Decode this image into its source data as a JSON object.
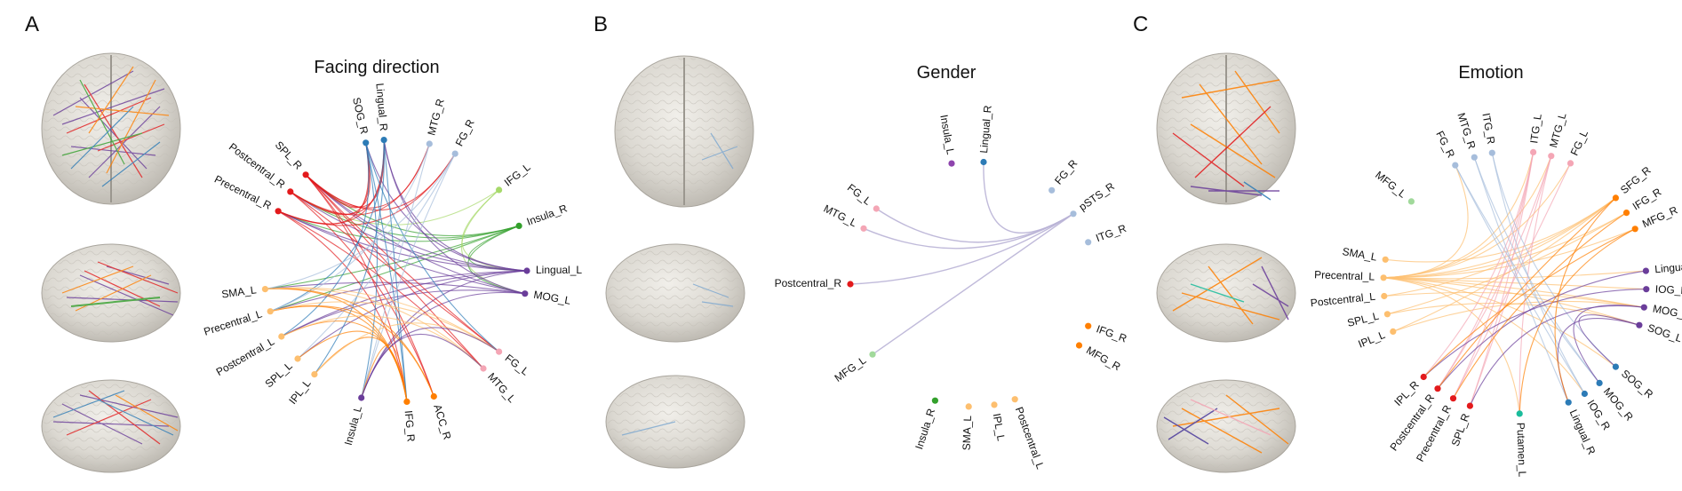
{
  "panels": [
    {
      "id": "A",
      "letter": "A",
      "title": "Facing direction",
      "nodes": [
        {
          "label": "SOG_R",
          "angle": -103,
          "color": "#2c7bb6"
        },
        {
          "label": "Lingual_R",
          "angle": -95,
          "color": "#2c7bb6"
        },
        {
          "label": "MTG_R",
          "angle": -75,
          "color": "#a6bddb"
        },
        {
          "label": "FG_R",
          "angle": -63,
          "color": "#a6bddb"
        },
        {
          "label": "IFG_L",
          "angle": -38,
          "color": "#a6d96a"
        },
        {
          "label": "Insula_R",
          "angle": -20,
          "color": "#33a02c"
        },
        {
          "label": "Lingual_L",
          "angle": 0,
          "color": "#6a3d9a"
        },
        {
          "label": "MOG_L",
          "angle": 10,
          "color": "#6a3d9a"
        },
        {
          "label": "FG_L",
          "angle": 38,
          "color": "#f4a6b5"
        },
        {
          "label": "MTG_L",
          "angle": 48,
          "color": "#f4a6b5"
        },
        {
          "label": "ACC_R",
          "angle": 73,
          "color": "#ff7f00"
        },
        {
          "label": "IFG_R",
          "angle": 85,
          "color": "#ff7f00"
        },
        {
          "label": "Insula_L",
          "angle": 105,
          "color": "#6a3d9a"
        },
        {
          "label": "IPL_L",
          "angle": 128,
          "color": "#fdbf6f"
        },
        {
          "label": "SPL_L",
          "angle": 138,
          "color": "#fdbf6f"
        },
        {
          "label": "Postcentral_L",
          "angle": 150,
          "color": "#fdbf6f"
        },
        {
          "label": "Precentral_L",
          "angle": 162,
          "color": "#fdbf6f"
        },
        {
          "label": "SMA_L",
          "angle": 172,
          "color": "#fdbf6f"
        },
        {
          "label": "Precentral_R",
          "angle": 207,
          "color": "#e31a1c"
        },
        {
          "label": "Postcentral_R",
          "angle": 217,
          "color": "#e31a1c"
        },
        {
          "label": "SPL_R",
          "angle": 227,
          "color": "#e31a1c"
        }
      ]
    },
    {
      "id": "B",
      "letter": "B",
      "title": "Gender",
      "nodes": [
        {
          "label": "Insula_L",
          "angle": -100,
          "color": "#8e44ad"
        },
        {
          "label": "Lingual_R",
          "angle": -85,
          "color": "#2c7bb6"
        },
        {
          "label": "FG_R",
          "angle": -50,
          "color": "#a6bddb"
        },
        {
          "label": "pSTS_R",
          "angle": -35,
          "color": "#a6bddb"
        },
        {
          "label": "ITG_R",
          "angle": -20,
          "color": "#a6bddb"
        },
        {
          "label": "IFG_R",
          "angle": 20,
          "color": "#ff7f00"
        },
        {
          "label": "MFG_R",
          "angle": 30,
          "color": "#ff7f00"
        },
        {
          "label": "Postcentral_L",
          "angle": 70,
          "color": "#fdbf6f"
        },
        {
          "label": "IPL_L",
          "angle": 80,
          "color": "#fdbf6f"
        },
        {
          "label": "SMA_L",
          "angle": 92,
          "color": "#fdbf6f"
        },
        {
          "label": "Insula_R",
          "angle": 108,
          "color": "#33a02c"
        },
        {
          "label": "MFG_L",
          "angle": 145,
          "color": "#a1d99b"
        },
        {
          "label": "Postcentral_R",
          "angle": 180,
          "color": "#e31a1c"
        },
        {
          "label": "MTG_L",
          "angle": 207,
          "color": "#f4a6b5"
        },
        {
          "label": "FG_L",
          "angle": 218,
          "color": "#f4a6b5"
        }
      ]
    },
    {
      "id": "C",
      "letter": "C",
      "title": "Emotion",
      "nodes": [
        {
          "label": "ITG_R",
          "angle": -100,
          "color": "#a6bddb"
        },
        {
          "label": "MTG_R",
          "angle": -108,
          "color": "#a6bddb"
        },
        {
          "label": "FG_R",
          "angle": -117,
          "color": "#a6bddb"
        },
        {
          "label": "ITG_L",
          "angle": -82,
          "color": "#f4a6b5"
        },
        {
          "label": "MTG_L",
          "angle": -74,
          "color": "#f4a6b5"
        },
        {
          "label": "FG_L",
          "angle": -65,
          "color": "#f4a6b5"
        },
        {
          "label": "SFG_R",
          "angle": -40,
          "color": "#ff7f00"
        },
        {
          "label": "IFG_R",
          "angle": -32,
          "color": "#ff7f00"
        },
        {
          "label": "MFG_R",
          "angle": -24,
          "color": "#ff7f00"
        },
        {
          "label": "Lingual_L",
          "angle": -5,
          "color": "#6a3d9a"
        },
        {
          "label": "IOG_L",
          "angle": 3,
          "color": "#6a3d9a"
        },
        {
          "label": "MOG_L",
          "angle": 11,
          "color": "#6a3d9a"
        },
        {
          "label": "SOG_L",
          "angle": 19,
          "color": "#6a3d9a"
        },
        {
          "label": "SOG_R",
          "angle": 40,
          "color": "#2c7bb6"
        },
        {
          "label": "MOG_R",
          "angle": 50,
          "color": "#2c7bb6"
        },
        {
          "label": "IOG_R",
          "angle": 58,
          "color": "#2c7bb6"
        },
        {
          "label": "Lingual_R",
          "angle": 66,
          "color": "#2c7bb6"
        },
        {
          "label": "Putamen_L",
          "angle": 88,
          "color": "#1abc9c"
        },
        {
          "label": "SPL_R",
          "angle": 110,
          "color": "#e31a1c"
        },
        {
          "label": "Precentral_R",
          "angle": 118,
          "color": "#e31a1c"
        },
        {
          "label": "Postcentral_R",
          "angle": 126,
          "color": "#e31a1c"
        },
        {
          "label": "IPL_R",
          "angle": 134,
          "color": "#e31a1c"
        },
        {
          "label": "IPL_L",
          "angle": 158,
          "color": "#fdbf6f"
        },
        {
          "label": "SPL_L",
          "angle": 166,
          "color": "#fdbf6f"
        },
        {
          "label": "Postcentral_L",
          "angle": 174,
          "color": "#fdbf6f"
        },
        {
          "label": "Precentral_L",
          "angle": 182,
          "color": "#fdbf6f"
        },
        {
          "label": "SMA_L",
          "angle": 190,
          "color": "#fdbf6f"
        },
        {
          "label": "MFG_L",
          "angle": 218,
          "color": "#a1d99b"
        }
      ]
    }
  ],
  "edges": {
    "A": [
      [
        "Insula_R",
        "Lingual_L"
      ],
      [
        "Insula_R",
        "MOG_L"
      ],
      [
        "Insula_R",
        "SPL_R"
      ],
      [
        "Insula_R",
        "Precentral_R"
      ],
      [
        "Insula_R",
        "Postcentral_R"
      ],
      [
        "Insula_R",
        "SMA_L"
      ],
      [
        "Insula_R",
        "Precentral_L"
      ],
      [
        "IFG_L",
        "Lingual_L"
      ],
      [
        "IFG_L",
        "Postcentral_R"
      ],
      [
        "IFG_L",
        "MOG_L"
      ],
      [
        "Lingual_L",
        "SPL_R"
      ],
      [
        "Lingual_L",
        "Precentral_R"
      ],
      [
        "Lingual_L",
        "Postcentral_R"
      ],
      [
        "Lingual_L",
        "Precentral_L"
      ],
      [
        "Lingual_L",
        "Postcentral_L"
      ],
      [
        "Lingual_L",
        "SPL_L"
      ],
      [
        "Lingual_L",
        "Insula_L"
      ],
      [
        "Lingual_L",
        "SOG_R"
      ],
      [
        "Lingual_L",
        "Lingual_R"
      ],
      [
        "MOG_L",
        "SPL_R"
      ],
      [
        "MOG_L",
        "Precentral_R"
      ],
      [
        "MOG_L",
        "Postcentral_L"
      ],
      [
        "MOG_L",
        "Insula_L"
      ],
      [
        "MOG_L",
        "SMA_L"
      ],
      [
        "MOG_L",
        "Lingual_R"
      ],
      [
        "SPL_R",
        "SOG_R"
      ],
      [
        "SPL_R",
        "Lingual_R"
      ],
      [
        "SPL_R",
        "MTG_R"
      ],
      [
        "SPL_R",
        "FG_R"
      ],
      [
        "SPL_R",
        "IFG_R"
      ],
      [
        "SPL_R",
        "ACC_R"
      ],
      [
        "SPL_R",
        "FG_L"
      ],
      [
        "SPL_R",
        "MTG_L"
      ],
      [
        "Precentral_R",
        "SOG_R"
      ],
      [
        "Precentral_R",
        "Lingual_R"
      ],
      [
        "Precentral_R",
        "IFG_R"
      ],
      [
        "Precentral_R",
        "FG_R"
      ],
      [
        "Precentral_R",
        "MTG_L"
      ],
      [
        "Postcentral_R",
        "SOG_R"
      ],
      [
        "Postcentral_R",
        "Lingual_R"
      ],
      [
        "Postcentral_R",
        "ACC_R"
      ],
      [
        "Postcentral_R",
        "FG_L"
      ],
      [
        "Postcentral_R",
        "MTG_R"
      ],
      [
        "SOG_R",
        "IFG_R"
      ],
      [
        "SOG_R",
        "Insula_L"
      ],
      [
        "SOG_R",
        "Postcentral_L"
      ],
      [
        "SOG_R",
        "FG_L"
      ],
      [
        "Lingual_R",
        "IFG_R"
      ],
      [
        "Lingual_R",
        "Precentral_L"
      ],
      [
        "Lingual_R",
        "IPL_L"
      ],
      [
        "MTG_R",
        "Insula_L"
      ],
      [
        "MTG_R",
        "Precentral_L"
      ],
      [
        "FG_R",
        "Insula_L"
      ],
      [
        "FG_R",
        "SPL_L"
      ],
      [
        "FG_R",
        "SMA_L"
      ],
      [
        "IFG_R",
        "SMA_L"
      ],
      [
        "IFG_R",
        "Precentral_L"
      ],
      [
        "IFG_R",
        "Postcentral_L"
      ],
      [
        "IFG_R",
        "SPL_L"
      ],
      [
        "IFG_R",
        "IPL_L"
      ],
      [
        "IFG_R",
        "Insula_L"
      ],
      [
        "ACC_R",
        "Precentral_L"
      ],
      [
        "ACC_R",
        "SMA_L"
      ],
      [
        "SMA_L",
        "FG_L"
      ],
      [
        "SMA_L",
        "MTG_L"
      ],
      [
        "Precentral_L",
        "FG_L"
      ],
      [
        "Postcentral_L",
        "MTG_L"
      ],
      [
        "IPL_L",
        "FG_L"
      ],
      [
        "Insula_L",
        "FG_L"
      ],
      [
        "Insula_L",
        "MTG_L"
      ]
    ],
    "B": [
      [
        "pSTS_R",
        "Lingual_R"
      ],
      [
        "pSTS_R",
        "Postcentral_R"
      ],
      [
        "pSTS_R",
        "MFG_L"
      ],
      [
        "pSTS_R",
        "MTG_L"
      ],
      [
        "pSTS_R",
        "FG_L"
      ]
    ],
    "C": [
      [
        "Precentral_L",
        "SFG_R"
      ],
      [
        "Precentral_L",
        "IFG_R"
      ],
      [
        "Precentral_L",
        "MFG_R"
      ],
      [
        "Precentral_L",
        "Lingual_L"
      ],
      [
        "Precentral_L",
        "IOG_L"
      ],
      [
        "Precentral_L",
        "MOG_L"
      ],
      [
        "Precentral_L",
        "SOG_L"
      ],
      [
        "Precentral_L",
        "ITG_L"
      ],
      [
        "Precentral_L",
        "MTG_L"
      ],
      [
        "Precentral_L",
        "FG_L"
      ],
      [
        "Precentral_L",
        "SOG_R"
      ],
      [
        "Precentral_L",
        "IOG_R"
      ],
      [
        "Precentral_L",
        "Putamen_L"
      ],
      [
        "Precentral_L",
        "FG_R"
      ],
      [
        "Postcentral_L",
        "SFG_R"
      ],
      [
        "Postcentral_L",
        "MOG_L"
      ],
      [
        "SPL_L",
        "IFG_R"
      ],
      [
        "SPL_L",
        "SOG_L"
      ],
      [
        "IPL_L",
        "MOG_L"
      ],
      [
        "IPL_L",
        "SFG_R"
      ],
      [
        "SMA_L",
        "SFG_R"
      ],
      [
        "ITG_L",
        "IPL_R"
      ],
      [
        "ITG_L",
        "Postcentral_R"
      ],
      [
        "ITG_L",
        "Precentral_R"
      ],
      [
        "ITG_L",
        "SPL_R"
      ],
      [
        "MTG_L",
        "SPL_R"
      ],
      [
        "MTG_L",
        "Postcentral_R"
      ],
      [
        "FG_L",
        "Precentral_R"
      ],
      [
        "MTG_L",
        "Putamen_L"
      ],
      [
        "FG_R",
        "MOG_R"
      ],
      [
        "FG_R",
        "IOG_R"
      ],
      [
        "MTG_R",
        "Lingual_R"
      ],
      [
        "MTG_R",
        "MOG_R"
      ],
      [
        "ITG_R",
        "SOG_R"
      ],
      [
        "ITG_R",
        "IOG_R"
      ],
      [
        "SOG_L",
        "SOG_R"
      ],
      [
        "MOG_L",
        "MOG_R"
      ],
      [
        "SOG_L",
        "Lingual_R"
      ],
      [
        "Lingual_L",
        "Postcentral_R"
      ],
      [
        "IOG_L",
        "IPL_R"
      ],
      [
        "MOG_L",
        "SPL_R"
      ],
      [
        "SFG_R",
        "Postcentral_R"
      ],
      [
        "IFG_R",
        "Precentral_R"
      ],
      [
        "MFG_R",
        "IPL_R"
      ],
      [
        "SFG_R",
        "Lingual_R"
      ],
      [
        "MFG_R",
        "Putamen_L"
      ]
    ]
  },
  "edge_colors": {
    "B": "#b9b3d6"
  }
}
